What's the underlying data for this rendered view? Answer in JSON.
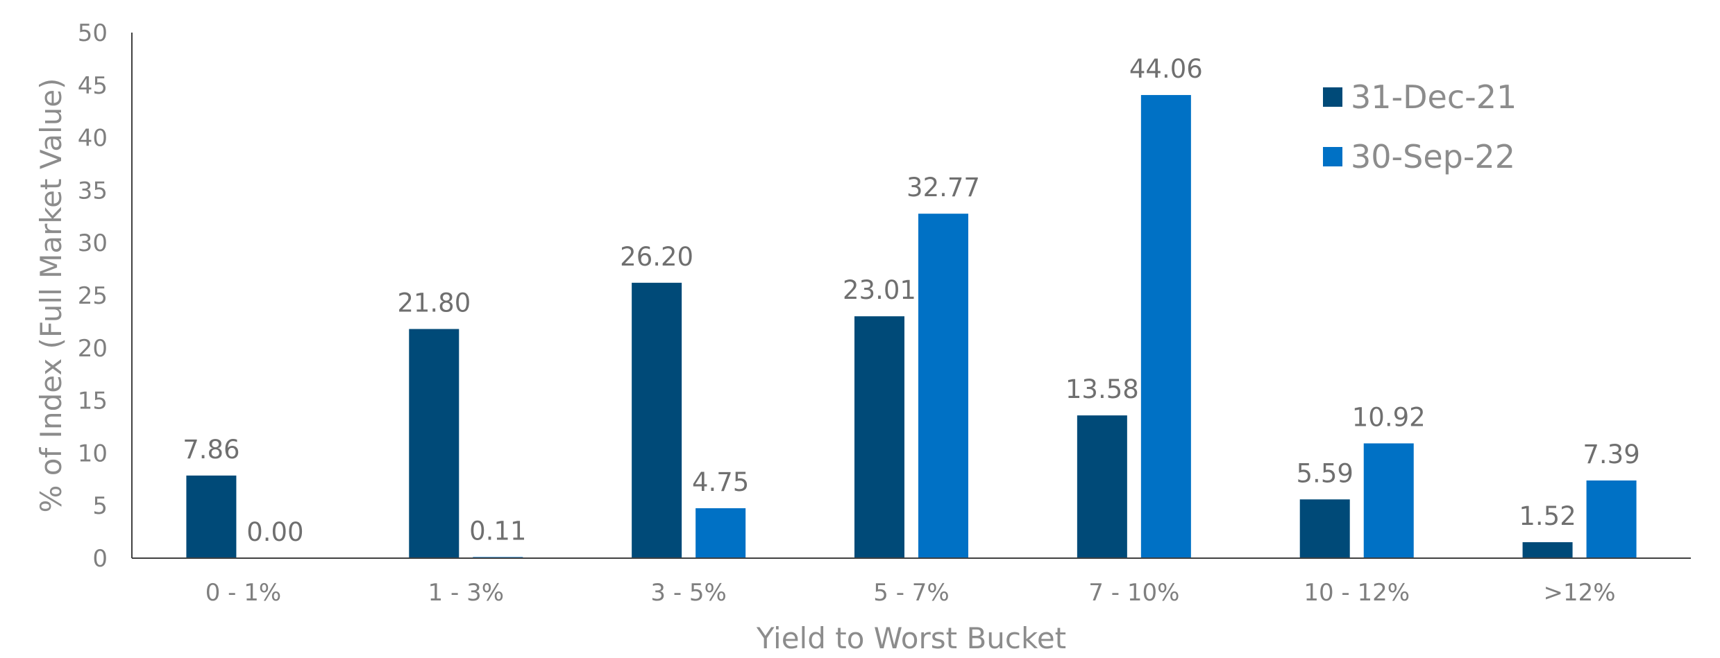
{
  "chart_data": {
    "type": "bar",
    "xlabel": "Yield to Worst Bucket",
    "ylabel": "% of Index (Full Market Value)",
    "ylim": [
      0,
      50
    ],
    "yticks": [
      0,
      5,
      10,
      15,
      20,
      25,
      30,
      35,
      40,
      45,
      50
    ],
    "categories": [
      "0 - 1%",
      "1 - 3%",
      "3 - 5%",
      "5 - 7%",
      "7 - 10%",
      "10 - 12%",
      ">12%"
    ],
    "series": [
      {
        "name": "31-Dec-21",
        "color": "#004a78",
        "values": [
          7.86,
          21.8,
          26.2,
          23.01,
          13.58,
          5.59,
          1.52
        ],
        "labels": [
          "7.86",
          "21.80",
          "26.20",
          "23.01",
          "13.58",
          "5.59",
          "1.52"
        ]
      },
      {
        "name": "30-Sep-22",
        "color": "#0071c5",
        "values": [
          0.0,
          0.11,
          4.75,
          32.77,
          44.06,
          10.92,
          7.39
        ],
        "labels": [
          "0.00",
          "0.11",
          "4.75",
          "32.77",
          "44.06",
          "10.92",
          "7.39"
        ]
      }
    ],
    "legend_position": "top-right",
    "grid": false
  }
}
